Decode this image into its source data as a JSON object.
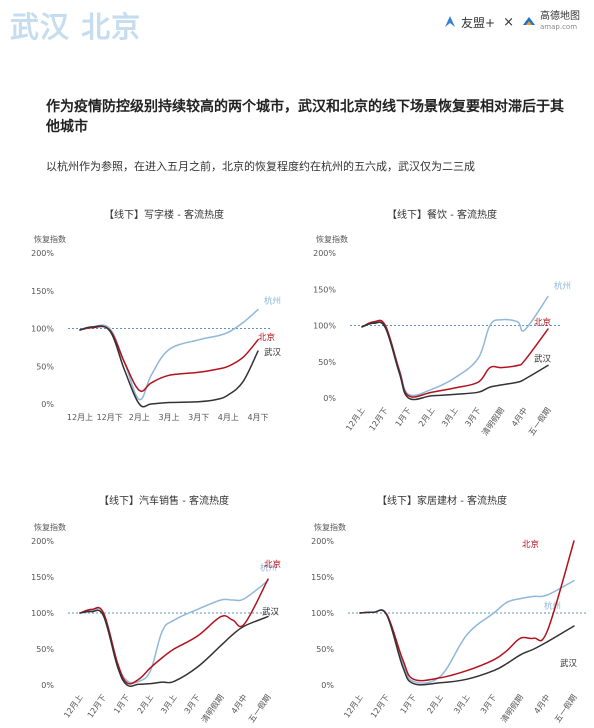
{
  "header": {
    "corner_title": "武汉 北京",
    "brand_left": "友盟+",
    "brand_cross": "×",
    "brand_right": "高德地图",
    "brand_right_url": "amap.com"
  },
  "headline": "作为疫情防控级别持续较高的两个城市，武汉和北京的线下场景恢复要相对滞后于其他城市",
  "subline": "以杭州作为参照，在进入五月之前，北京的恢复程度约在杭州的五六成，武汉仅为二三成",
  "colors": {
    "hangzhou": "#8fb8dc",
    "beijing": "#b3121d",
    "wuhan": "#333333",
    "reference": "#2f6db3",
    "axis_text": "#555555",
    "corner_title": "#c6ddf0"
  },
  "chart_data": [
    {
      "type": "line",
      "title": "【线下】写字楼 - 客流热度",
      "ylabel": "恢复指数",
      "ylim": [
        0,
        200
      ],
      "yticks": [
        "0%",
        "50%",
        "100%",
        "150%",
        "200%"
      ],
      "categories": [
        "12月上",
        "12月下",
        "2月上",
        "3月上",
        "3月下",
        "4月上",
        "4月下"
      ],
      "reference_line": 100,
      "x_label_rotate": false,
      "series": [
        {
          "name": "杭州",
          "key": "hangzhou",
          "x": [
            0,
            0.4,
            1,
            1.5,
            2,
            2.4,
            3,
            4,
            4.6,
            5,
            5.5,
            6
          ],
          "y": [
            98,
            102,
            100,
            55,
            6,
            38,
            72,
            85,
            90,
            95,
            108,
            125
          ]
        },
        {
          "name": "北京",
          "key": "beijing",
          "x": [
            0,
            0.4,
            1,
            1.5,
            2,
            2.4,
            3,
            4,
            4.6,
            5,
            5.5,
            6
          ],
          "y": [
            98,
            101,
            98,
            55,
            18,
            28,
            38,
            42,
            46,
            50,
            62,
            85
          ]
        },
        {
          "name": "武汉",
          "key": "wuhan",
          "x": [
            0,
            0.4,
            1,
            1.5,
            2,
            2.4,
            3,
            4,
            4.6,
            5,
            5.5,
            6
          ],
          "y": [
            98,
            102,
            97,
            45,
            0,
            0,
            2,
            3,
            6,
            12,
            30,
            70
          ]
        }
      ]
    },
    {
      "type": "line",
      "title": "【线下】餐饮 - 客流热度",
      "ylabel": "恢复指数",
      "ylim": [
        0,
        200
      ],
      "yticks": [
        "0%",
        "50%",
        "100%",
        "150%",
        "200%"
      ],
      "categories": [
        "12月上",
        "12月下",
        "1月下",
        "2月上",
        "3月上",
        "3月下",
        "清明假期",
        "4月中",
        "五一假期"
      ],
      "reference_line": 100,
      "x_label_rotate": true,
      "series": [
        {
          "name": "杭州",
          "key": "hangzhou",
          "x": [
            0,
            0.5,
            1,
            1.6,
            2,
            3,
            4,
            5,
            5.5,
            6,
            6.7,
            7,
            8
          ],
          "y": [
            98,
            104,
            100,
            40,
            5,
            12,
            28,
            55,
            100,
            108,
            105,
            94,
            140
          ]
        },
        {
          "name": "北京",
          "key": "beijing",
          "x": [
            0,
            0.5,
            1,
            1.6,
            2,
            3,
            4,
            5,
            5.5,
            6,
            6.7,
            7,
            8
          ],
          "y": [
            98,
            105,
            100,
            38,
            3,
            8,
            14,
            22,
            42,
            42,
            45,
            52,
            95
          ]
        },
        {
          "name": "武汉",
          "key": "wuhan",
          "x": [
            0,
            0.5,
            1,
            1.6,
            2,
            3,
            4,
            5,
            5.5,
            6,
            6.7,
            7,
            8
          ],
          "y": [
            98,
            103,
            97,
            35,
            0,
            3,
            5,
            8,
            15,
            18,
            22,
            26,
            45
          ]
        }
      ]
    },
    {
      "type": "line",
      "title": "【线下】汽车销售 - 客流热度",
      "ylabel": "恢复指数",
      "ylim": [
        0,
        200
      ],
      "yticks": [
        "0%",
        "50%",
        "100%",
        "150%",
        "200%"
      ],
      "categories": [
        "12月上",
        "12月下",
        "1月下",
        "2月上",
        "3月上",
        "3月下",
        "清明假期",
        "4月中",
        "五一假期"
      ],
      "reference_line": 100,
      "x_label_rotate": true,
      "series": [
        {
          "name": "杭州",
          "key": "hangzhou",
          "x": [
            0,
            0.5,
            1,
            1.6,
            2,
            2.5,
            3,
            3.5,
            4,
            5,
            6,
            6.5,
            7,
            8
          ],
          "y": [
            100,
            103,
            100,
            30,
            6,
            5,
            20,
            75,
            90,
            105,
            118,
            118,
            120,
            145
          ]
        },
        {
          "name": "北京",
          "key": "beijing",
          "x": [
            0,
            0.5,
            1,
            1.6,
            2,
            2.5,
            3,
            3.5,
            4,
            5,
            6,
            6.5,
            7,
            8
          ],
          "y": [
            100,
            105,
            100,
            30,
            3,
            8,
            24,
            38,
            50,
            68,
            95,
            90,
            85,
            147
          ]
        },
        {
          "name": "武汉",
          "key": "wuhan",
          "x": [
            0,
            0.5,
            1,
            1.6,
            2,
            2.5,
            3,
            3.5,
            4,
            5,
            6,
            6.5,
            7,
            8
          ],
          "y": [
            100,
            102,
            96,
            25,
            0,
            1,
            2,
            4,
            5,
            25,
            55,
            70,
            82,
            95
          ]
        }
      ]
    },
    {
      "type": "line",
      "title": "【线下】家居建材 - 客流热度",
      "ylabel": "恢复指数",
      "ylim": [
        0,
        200
      ],
      "yticks": [
        "0%",
        "50%",
        "100%",
        "150%",
        "200%"
      ],
      "categories": [
        "12月上",
        "12月下",
        "1月下",
        "2月上",
        "3月上",
        "3月下",
        "清明假期",
        "4月中",
        "五一假期"
      ],
      "reference_line": 100,
      "x_label_rotate": true,
      "series": [
        {
          "name": "杭州",
          "key": "hangzhou",
          "x": [
            0,
            0.5,
            1,
            1.6,
            2,
            3,
            4,
            5,
            5.5,
            6,
            6.5,
            7,
            8
          ],
          "y": [
            100,
            101,
            98,
            30,
            5,
            12,
            70,
            100,
            115,
            120,
            123,
            125,
            145
          ]
        },
        {
          "name": "北京",
          "key": "beijing",
          "x": [
            0,
            0.5,
            1,
            1.6,
            2,
            3,
            4,
            5,
            5.5,
            6,
            6.5,
            7,
            8
          ],
          "y": [
            100,
            101,
            98,
            35,
            8,
            10,
            20,
            35,
            48,
            65,
            65,
            75,
            200
          ]
        },
        {
          "name": "武汉",
          "key": "wuhan",
          "x": [
            0,
            0.5,
            1,
            1.6,
            2,
            3,
            4,
            5,
            5.5,
            6,
            6.5,
            7,
            8
          ],
          "y": [
            100,
            101,
            97,
            25,
            2,
            3,
            8,
            20,
            30,
            42,
            50,
            60,
            82
          ]
        }
      ]
    }
  ]
}
